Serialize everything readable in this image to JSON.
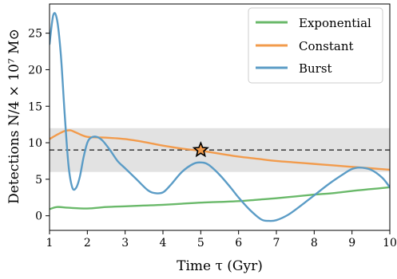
{
  "chart_data": {
    "type": "line",
    "xlabel": "Time τ (Gyr)",
    "ylabel": "Detections N/4 × 10⁷ M⊙",
    "xlim": [
      1,
      10
    ],
    "ylim": [
      -2,
      29
    ],
    "xticks": [
      1,
      2,
      3,
      4,
      5,
      6,
      7,
      8,
      9,
      10
    ],
    "yticks": [
      0,
      5,
      10,
      15,
      20,
      25
    ],
    "grid": false,
    "legend_position": "top-right",
    "colors": {
      "Exponential": "#6ab96a",
      "Constant": "#f29b4c",
      "Burst": "#5b9cc6",
      "band": "#e2e2e2",
      "dashed_line": "#444444",
      "marker_fill": "#f29b4c"
    },
    "band": {
      "y_range": [
        6,
        12
      ]
    },
    "reference_line": {
      "y": 9
    },
    "marker": {
      "x": 5,
      "y": 9,
      "shape": "star"
    },
    "series": [
      {
        "name": "Exponential",
        "x": [
          1.0,
          1.2,
          1.5,
          2.0,
          2.5,
          3.0,
          3.5,
          4.0,
          4.5,
          5.0,
          5.5,
          6.0,
          6.5,
          7.0,
          7.5,
          8.0,
          8.5,
          9.0,
          9.5,
          10.0
        ],
        "y": [
          0.9,
          1.2,
          1.1,
          1.0,
          1.2,
          1.3,
          1.4,
          1.5,
          1.65,
          1.8,
          1.9,
          2.0,
          2.2,
          2.4,
          2.65,
          2.9,
          3.1,
          3.4,
          3.65,
          3.9
        ]
      },
      {
        "name": "Constant",
        "x": [
          1.0,
          1.2,
          1.4,
          1.55,
          1.7,
          2.0,
          2.5,
          3.0,
          3.5,
          4.0,
          4.5,
          5.0,
          5.5,
          6.0,
          6.5,
          7.0,
          7.5,
          8.0,
          8.5,
          9.0,
          9.5,
          10.0
        ],
        "y": [
          10.5,
          11.1,
          11.6,
          11.7,
          11.4,
          10.8,
          10.7,
          10.5,
          10.1,
          9.6,
          9.2,
          8.9,
          8.5,
          8.1,
          7.8,
          7.5,
          7.3,
          7.1,
          6.9,
          6.7,
          6.5,
          6.3
        ]
      },
      {
        "name": "Burst",
        "x": [
          1.0,
          1.1,
          1.2,
          1.3,
          1.4,
          1.5,
          1.6,
          1.7,
          1.8,
          1.9,
          2.0,
          2.1,
          2.25,
          2.4,
          2.6,
          2.8,
          3.0,
          3.3,
          3.6,
          3.8,
          4.0,
          4.2,
          4.5,
          4.8,
          5.0,
          5.2,
          5.5,
          5.8,
          6.0,
          6.3,
          6.6,
          6.8,
          7.0,
          7.3,
          7.6,
          8.0,
          8.4,
          8.8,
          9.0,
          9.2,
          9.5,
          9.8,
          10.0
        ],
        "y": [
          23.5,
          27.5,
          26.8,
          22.0,
          14.0,
          7.0,
          3.9,
          3.8,
          5.3,
          8.0,
          10.0,
          10.7,
          10.8,
          10.3,
          9.0,
          7.5,
          6.5,
          5.0,
          3.5,
          3.1,
          3.2,
          4.2,
          6.0,
          7.1,
          7.3,
          7.0,
          5.6,
          3.8,
          2.5,
          0.8,
          -0.5,
          -0.7,
          -0.6,
          0.1,
          1.2,
          2.8,
          4.4,
          5.8,
          6.4,
          6.6,
          6.3,
          5.2,
          3.9
        ]
      }
    ]
  }
}
